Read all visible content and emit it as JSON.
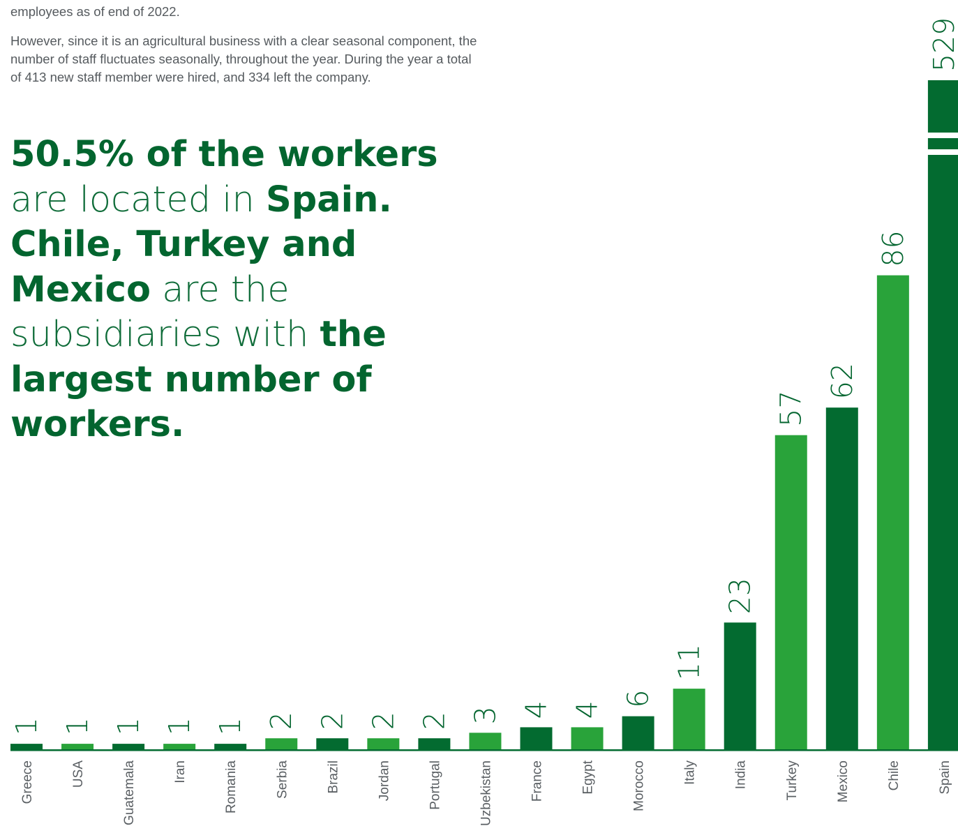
{
  "intro": {
    "para1": "employees as of end of 2022.",
    "para2": "However, since it is an agricultural business with a clear seasonal component, the number of staff fluctuates seasonally, throughout the year. During the year a total of 413 new staff member were hired, and 334 left the company."
  },
  "headline": {
    "s1": "50.5% of the workers",
    "s2": "are located in",
    "s3": "Spain.",
    "s4": "Chile, Turkey and",
    "s5": "Mexico",
    "s6": "are the",
    "s7": "subsidiaries with",
    "s8": "the",
    "s9": "largest number of",
    "s10": "workers."
  },
  "colors": {
    "dark_green": "#036b30",
    "light_green": "#29a33a",
    "text_green": "#03652f"
  },
  "chart_data": {
    "type": "bar",
    "categories": [
      "Greece",
      "USA",
      "Guatemala",
      "Iran",
      "Romania",
      "Serbia",
      "Brazil",
      "Jordan",
      "Portugal",
      "Uzbekistan",
      "France",
      "Egypt",
      "Morocco",
      "Italy",
      "India",
      "Turkey",
      "Mexico",
      "Chile",
      "Spain"
    ],
    "values": [
      1,
      1,
      1,
      1,
      1,
      2,
      2,
      2,
      2,
      3,
      4,
      4,
      6,
      11,
      23,
      57,
      62,
      86,
      529
    ],
    "bar_colors": [
      "dark",
      "light",
      "dark",
      "light",
      "dark",
      "light",
      "dark",
      "light",
      "dark",
      "light",
      "dark",
      "light",
      "dark",
      "light",
      "dark",
      "light",
      "dark",
      "light",
      "dark"
    ],
    "axis_break_on": "Spain",
    "title": "",
    "xlabel": "",
    "ylabel": ""
  }
}
